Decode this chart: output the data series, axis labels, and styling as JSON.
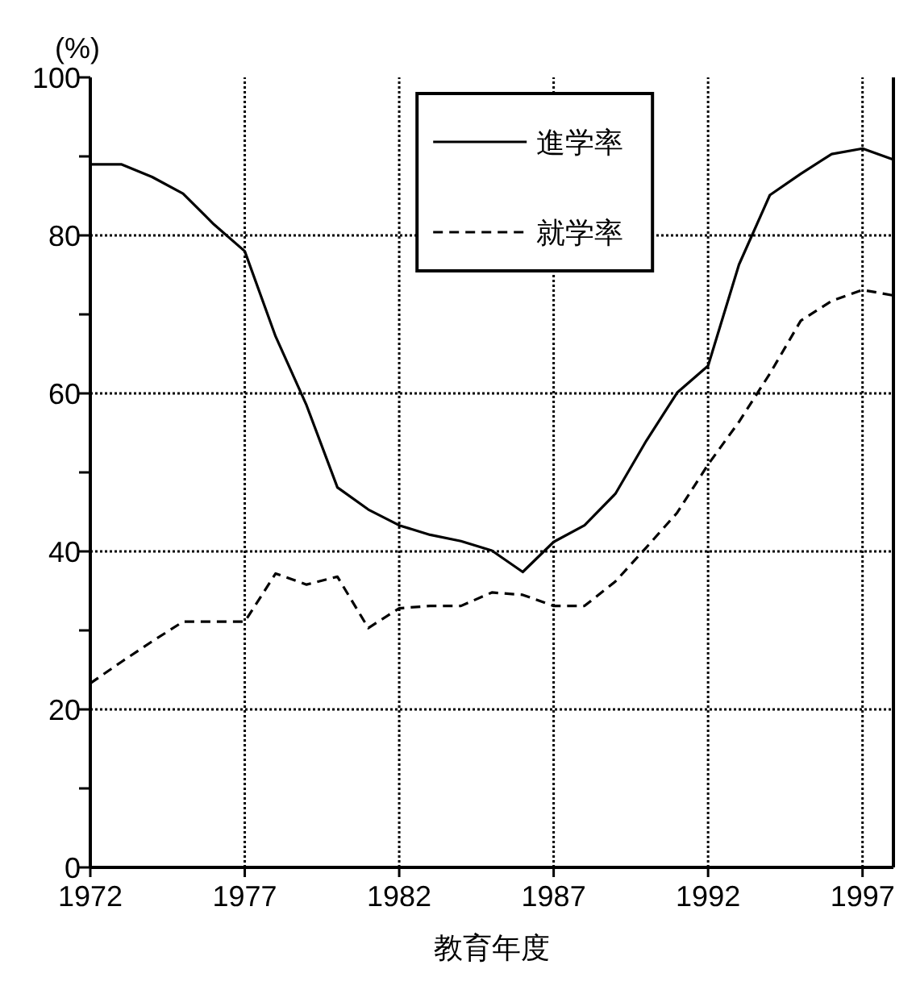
{
  "chart_data": {
    "type": "line",
    "xlabel": "教育年度",
    "ylabel": "(%)",
    "x": [
      1972,
      1973,
      1974,
      1975,
      1976,
      1977,
      1978,
      1979,
      1980,
      1981,
      1982,
      1983,
      1984,
      1985,
      1986,
      1987,
      1988,
      1989,
      1990,
      1991,
      1992,
      1993,
      1994,
      1995,
      1996,
      1997,
      1998
    ],
    "series": [
      {
        "name": "進学率",
        "color": "#000000",
        "line_style": "solid",
        "values": [
          89,
          89,
          87.4,
          85.3,
          81.4,
          78,
          67.2,
          58.5,
          48.1,
          45.3,
          43.3,
          42.1,
          41.3,
          40.1,
          37.4,
          41.2,
          43.3,
          47.3,
          54,
          60.1,
          63.5,
          76.3,
          85.1,
          87.8,
          90.3,
          91,
          89.6
        ]
      },
      {
        "name": "就学率",
        "color": "#000000",
        "line_style": "dashed",
        "values": [
          23.3,
          26,
          28.6,
          31.1,
          31.1,
          31.1,
          37.2,
          35.8,
          36.8,
          30.3,
          32.8,
          33.1,
          33.1,
          34.8,
          34.5,
          33.1,
          33.1,
          36.2,
          40.5,
          44.9,
          51,
          56.4,
          62.5,
          69.2,
          71.7,
          73.1,
          72.4
        ]
      }
    ],
    "xlim": [
      1972,
      1998
    ],
    "xticks": [
      1972,
      1977,
      1982,
      1987,
      1992,
      1997
    ],
    "ylim": [
      0,
      100
    ],
    "yticks": [
      0,
      {
        "value": 10,
        "label": null
      },
      20,
      {
        "value": 30,
        "label": null
      },
      40,
      {
        "value": 50,
        "label": null
      },
      60,
      {
        "value": 70,
        "label": null
      },
      80,
      {
        "value": 90,
        "label": null
      },
      100
    ],
    "grid": true,
    "legend": "top right",
    "marker": "none"
  }
}
